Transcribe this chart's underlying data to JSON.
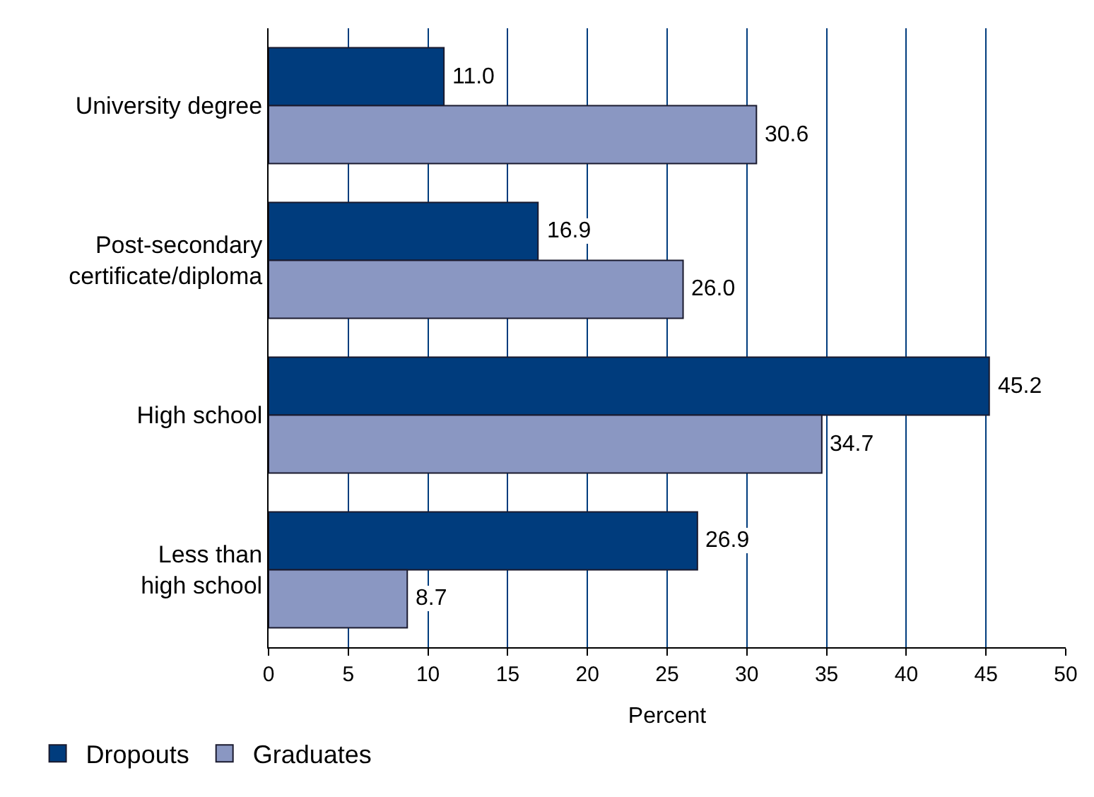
{
  "chart_data": {
    "type": "bar",
    "orientation": "horizontal",
    "xlabel": "Percent",
    "categories": [
      "University degree",
      "Post-secondary\ncertificate/diploma",
      "High school",
      "Less than\nhigh school"
    ],
    "series": [
      {
        "name": "Dropouts",
        "color": "#003c7d",
        "values": [
          11.0,
          16.9,
          45.2,
          26.9
        ],
        "value_labels": [
          "11.0",
          "16.9",
          "45.2",
          "26.9"
        ]
      },
      {
        "name": "Graduates",
        "color": "#8a97c2",
        "values": [
          30.6,
          26.0,
          34.7,
          8.7
        ],
        "value_labels": [
          "30.6",
          "26.0",
          "34.7",
          "8.7"
        ]
      }
    ],
    "xlim": [
      0,
      50
    ],
    "xticks": [
      0,
      5,
      10,
      15,
      20,
      25,
      30,
      35,
      40,
      45,
      50
    ],
    "grid": "x",
    "legend": "bottom left"
  }
}
